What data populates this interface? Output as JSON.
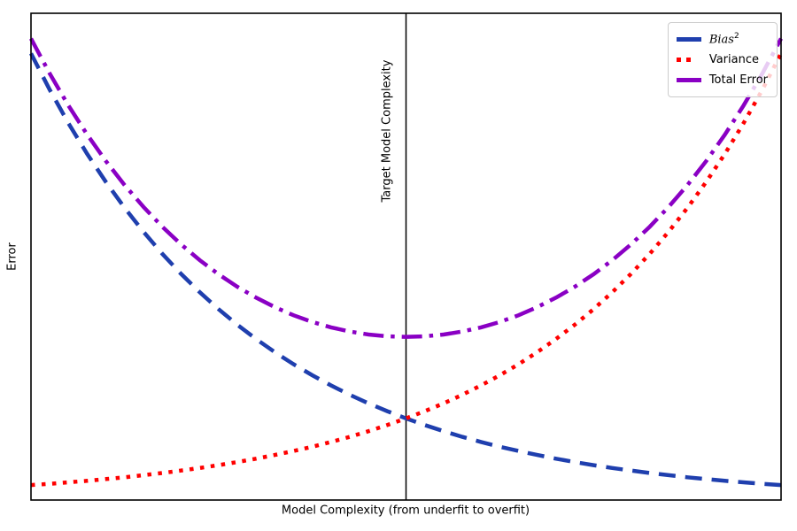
{
  "figure": {
    "xlabel": "Model Complexity (from underfit to overfit)",
    "ylabel": "Error",
    "vline_label": "Target Model Complexity",
    "background": "#ffffff",
    "spine_color": "#000000"
  },
  "legend": {
    "position": "upper right",
    "items": [
      {
        "label": "Bias",
        "exponent": "2",
        "color": "#1f3fae",
        "style": "dashed"
      },
      {
        "label": "Variance",
        "color": "#ff0000",
        "style": "dotted"
      },
      {
        "label": "Total Error",
        "color": "#8a00c4",
        "style": "dashdot"
      }
    ]
  },
  "chart_data": {
    "type": "line",
    "title": "",
    "xlabel": "Model Complexity (from underfit to overfit)",
    "ylabel": "Error",
    "xlim": [
      0,
      1
    ],
    "ylim": [
      0,
      1.09
    ],
    "grid": false,
    "tick_labels": "none",
    "legend_position": "upper right",
    "annotations": [
      {
        "type": "vline",
        "x": 0.5,
        "label": "Target Model Complexity",
        "color": "#000000",
        "linewidth": 1.5
      }
    ],
    "x": [
      0,
      0.025,
      0.05,
      0.075,
      0.1,
      0.125,
      0.15,
      0.175,
      0.2,
      0.225,
      0.25,
      0.275,
      0.3,
      0.325,
      0.35,
      0.375,
      0.4,
      0.425,
      0.45,
      0.475,
      0.5,
      0.525,
      0.55,
      0.575,
      0.6,
      0.625,
      0.65,
      0.675,
      0.7,
      0.725,
      0.75,
      0.775,
      0.8,
      0.825,
      0.85,
      0.875,
      0.9,
      0.925,
      0.95,
      0.975,
      1
    ],
    "series": [
      {
        "name": "Bias²",
        "color": "#1f3fae",
        "linestyle": "dashed",
        "linewidth": 4.5,
        "values": [
          1,
          0.9185,
          0.8437,
          0.7749,
          0.7118,
          0.6538,
          0.6005,
          0.5516,
          0.5066,
          0.4653,
          0.4274,
          0.3926,
          0.3606,
          0.3312,
          0.3042,
          0.2794,
          0.2567,
          0.2357,
          0.2165,
          0.1989,
          0.1827,
          0.1678,
          0.1541,
          0.1416,
          0.13,
          0.1194,
          0.1097,
          0.1008,
          0.0926,
          0.085,
          0.0781,
          0.0717,
          0.0659,
          0.0605,
          0.0556,
          0.051,
          0.0469,
          0.0431,
          0.0396,
          0.0363,
          0.0334
        ]
      },
      {
        "name": "Variance",
        "color": "#ff0000",
        "linestyle": "dotted",
        "linewidth": 4.5,
        "values": [
          0.0334,
          0.0363,
          0.0396,
          0.0431,
          0.0469,
          0.051,
          0.0556,
          0.0605,
          0.0659,
          0.0717,
          0.0781,
          0.085,
          0.0926,
          0.1008,
          0.1097,
          0.1194,
          0.13,
          0.1416,
          0.1541,
          0.1678,
          0.1827,
          0.1989,
          0.2165,
          0.2357,
          0.2567,
          0.2794,
          0.3042,
          0.3312,
          0.3606,
          0.3926,
          0.4274,
          0.4653,
          0.5066,
          0.5516,
          0.6005,
          0.6538,
          0.7118,
          0.7749,
          0.8437,
          0.9185,
          1
        ]
      },
      {
        "name": "Total Error",
        "color": "#8a00c4",
        "linestyle": "dashdot",
        "linewidth": 4.5,
        "values": [
          1.0334,
          0.9548,
          0.8833,
          0.818,
          0.7587,
          0.7048,
          0.6561,
          0.6121,
          0.5725,
          0.537,
          0.5055,
          0.4776,
          0.4532,
          0.432,
          0.4139,
          0.3988,
          0.3867,
          0.3773,
          0.3706,
          0.3667,
          0.3654,
          0.3667,
          0.3706,
          0.3773,
          0.3867,
          0.3988,
          0.4139,
          0.432,
          0.4532,
          0.4776,
          0.5055,
          0.537,
          0.5725,
          0.6121,
          0.6561,
          0.7048,
          0.7587,
          0.818,
          0.8833,
          0.9548,
          1.0334
        ]
      }
    ]
  }
}
